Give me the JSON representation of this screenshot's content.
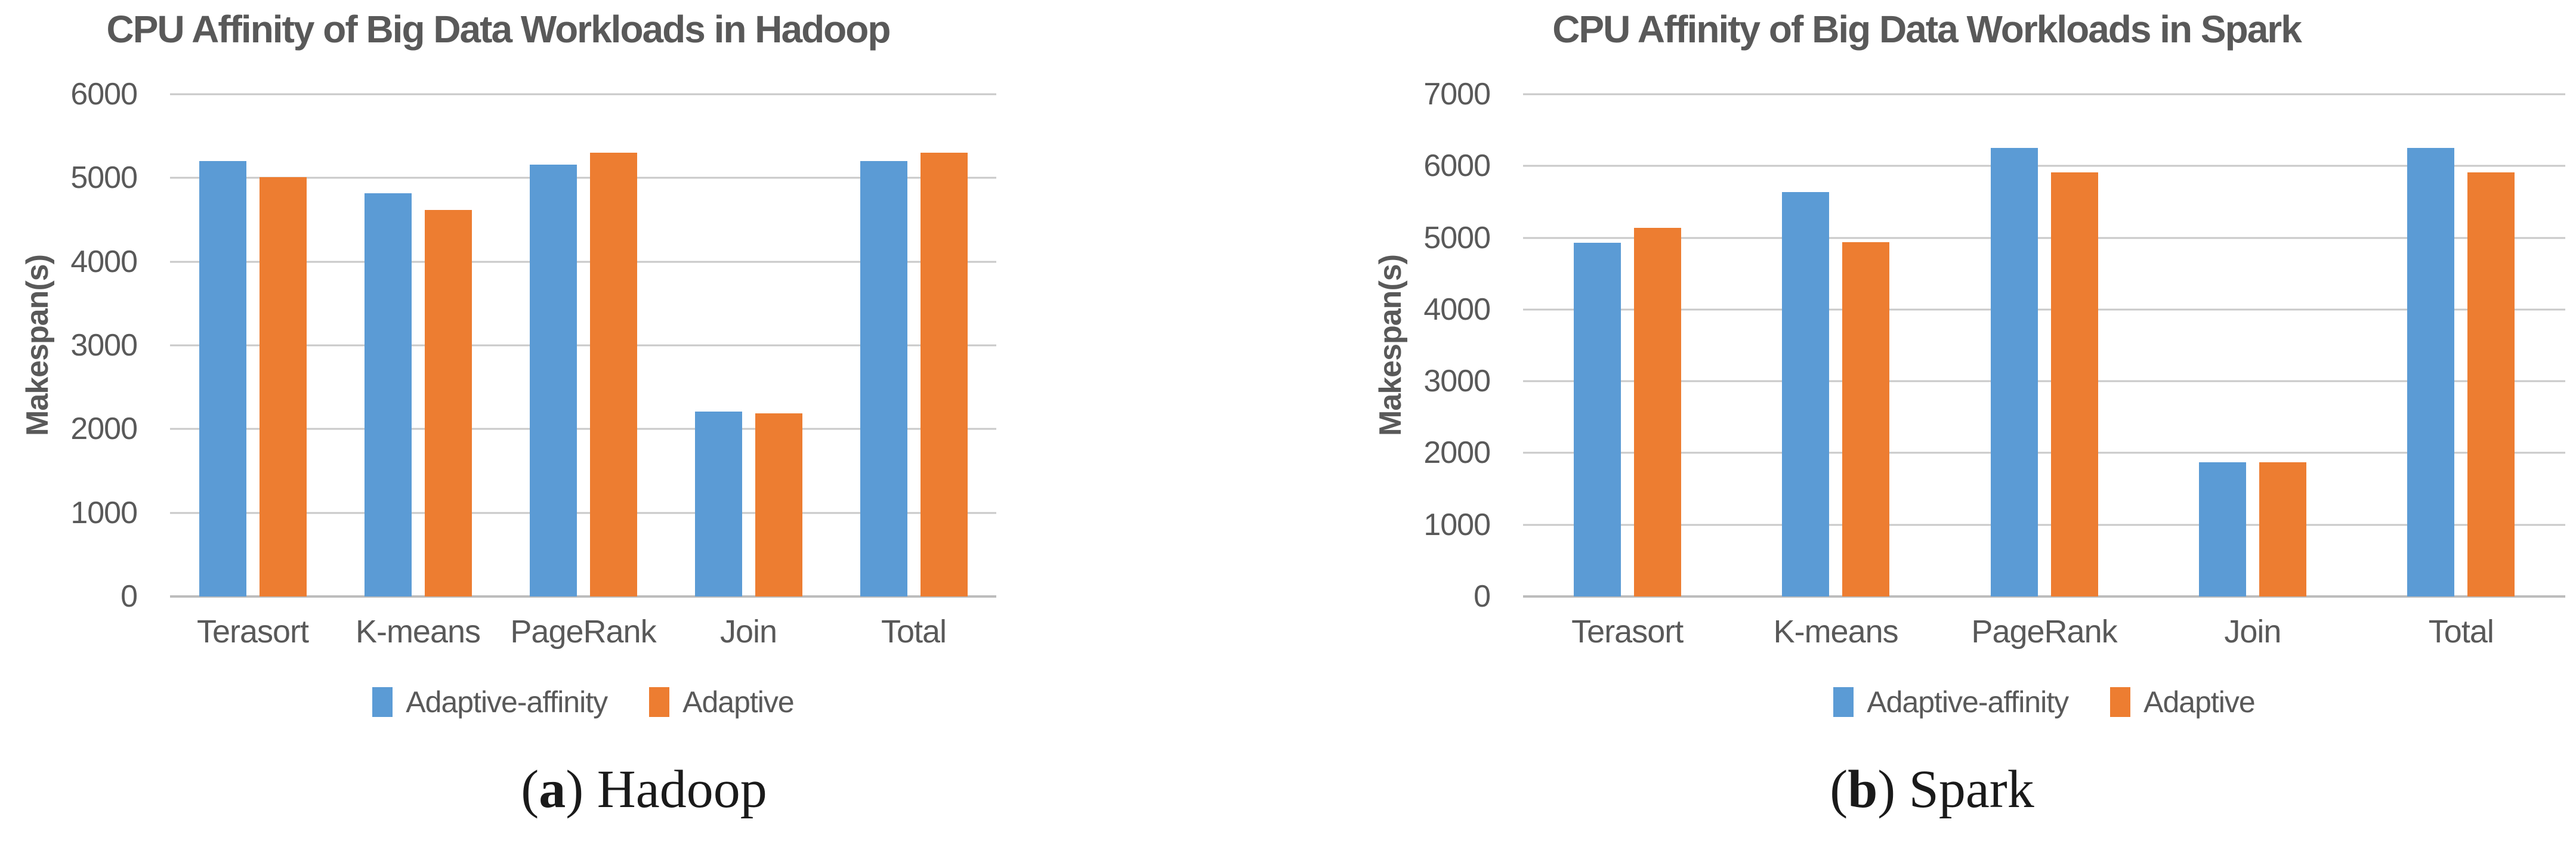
{
  "colors": {
    "series_blue": "#5B9BD5",
    "series_orange": "#ED7D31",
    "title_text": "#595959",
    "axis_text": "#595959",
    "gridline": "#C9C9C9",
    "axis_line": "#BDBDBD",
    "caption_text": "#1a1a1a",
    "background": "#ffffff"
  },
  "chart_data": [
    {
      "id": "hadoop",
      "type": "bar",
      "title": "CPU Affinity of Big Data Workloads in Hadoop",
      "xlabel": "",
      "ylabel": "Makespan(s)",
      "ylim": [
        0,
        6000
      ],
      "ytick_step": 1000,
      "grid": true,
      "legend_position": "bottom",
      "categories": [
        "Terasort",
        "K-means",
        "PageRank",
        "Join",
        "Total"
      ],
      "series": [
        {
          "name": "Adaptive-affinity",
          "color_key": "series_blue",
          "values": [
            5200,
            4820,
            5160,
            2210,
            5200
          ]
        },
        {
          "name": "Adaptive",
          "color_key": "series_orange",
          "values": [
            5010,
            4620,
            5300,
            2190,
            5300
          ]
        }
      ],
      "caption": {
        "open": "(",
        "letter": "a",
        "close": ") ",
        "label": "Hadoop"
      }
    },
    {
      "id": "spark",
      "type": "bar",
      "title": "CPU Affinity of Big Data Workloads in Spark",
      "xlabel": "",
      "ylabel": "Makespan(s)",
      "ylim": [
        0,
        7000
      ],
      "ytick_step": 1000,
      "grid": true,
      "legend_position": "bottom",
      "categories": [
        "Terasort",
        "K-means",
        "PageRank",
        "Join",
        "Total"
      ],
      "series": [
        {
          "name": "Adaptive-affinity",
          "color_key": "series_blue",
          "values": [
            4930,
            5640,
            6250,
            1870,
            6250
          ]
        },
        {
          "name": "Adaptive",
          "color_key": "series_orange",
          "values": [
            5140,
            4940,
            5910,
            1870,
            5910
          ]
        }
      ],
      "caption": {
        "open": "(",
        "letter": "b",
        "close": ") ",
        "label": "Spark"
      }
    }
  ]
}
